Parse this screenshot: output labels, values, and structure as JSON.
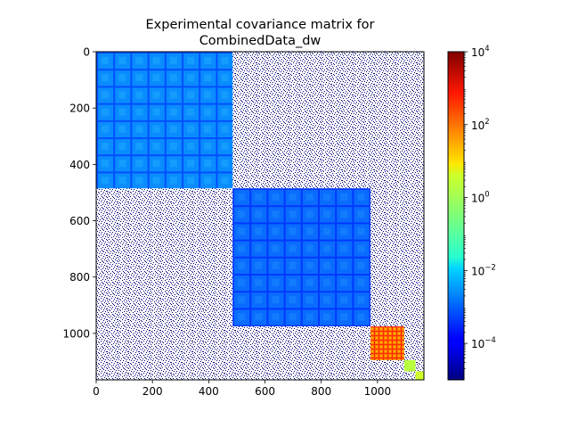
{
  "chart_data": {
    "type": "heatmap",
    "title_line1": "Experimental covariance matrix for",
    "title_line2": "CombinedData_dw",
    "matrix_size": 1165,
    "xlim": [
      0,
      1165
    ],
    "ylim": [
      0,
      1165
    ],
    "x_ticks": [
      "0",
      "200",
      "400",
      "600",
      "800",
      "1000"
    ],
    "x_tick_values": [
      0,
      200,
      400,
      600,
      800,
      1000
    ],
    "y_ticks": [
      "0",
      "200",
      "400",
      "600",
      "800",
      "1000"
    ],
    "y_tick_values": [
      0,
      200,
      400,
      600,
      800,
      1000
    ],
    "colorbar": {
      "scale": "log",
      "colormap": "jet",
      "vmin": 1e-05,
      "vmax": 10000,
      "tick_values": [
        0.0001,
        0.01,
        1,
        100,
        10000
      ],
      "tick_labels": [
        {
          "base": "10",
          "exp": "−4"
        },
        {
          "base": "10",
          "exp": "−2"
        },
        {
          "base": "10",
          "exp": "0"
        },
        {
          "base": "10",
          "exp": "2"
        },
        {
          "base": "10",
          "exp": "4"
        }
      ]
    },
    "blocks": [
      {
        "name": "block-1",
        "start": 0,
        "end": 485,
        "approx_value": 0.003
      },
      {
        "name": "block-2",
        "start": 485,
        "end": 975,
        "approx_value": 0.0015
      },
      {
        "name": "block-3",
        "start": 975,
        "end": 1095,
        "approx_value": 300
      },
      {
        "name": "block-4",
        "start": 1095,
        "end": 1135,
        "approx_value": 1.5
      },
      {
        "name": "block-5",
        "start": 1135,
        "end": 1165,
        "approx_value": 2
      }
    ],
    "off_diagonal_value": 1e-05,
    "grid": false
  }
}
